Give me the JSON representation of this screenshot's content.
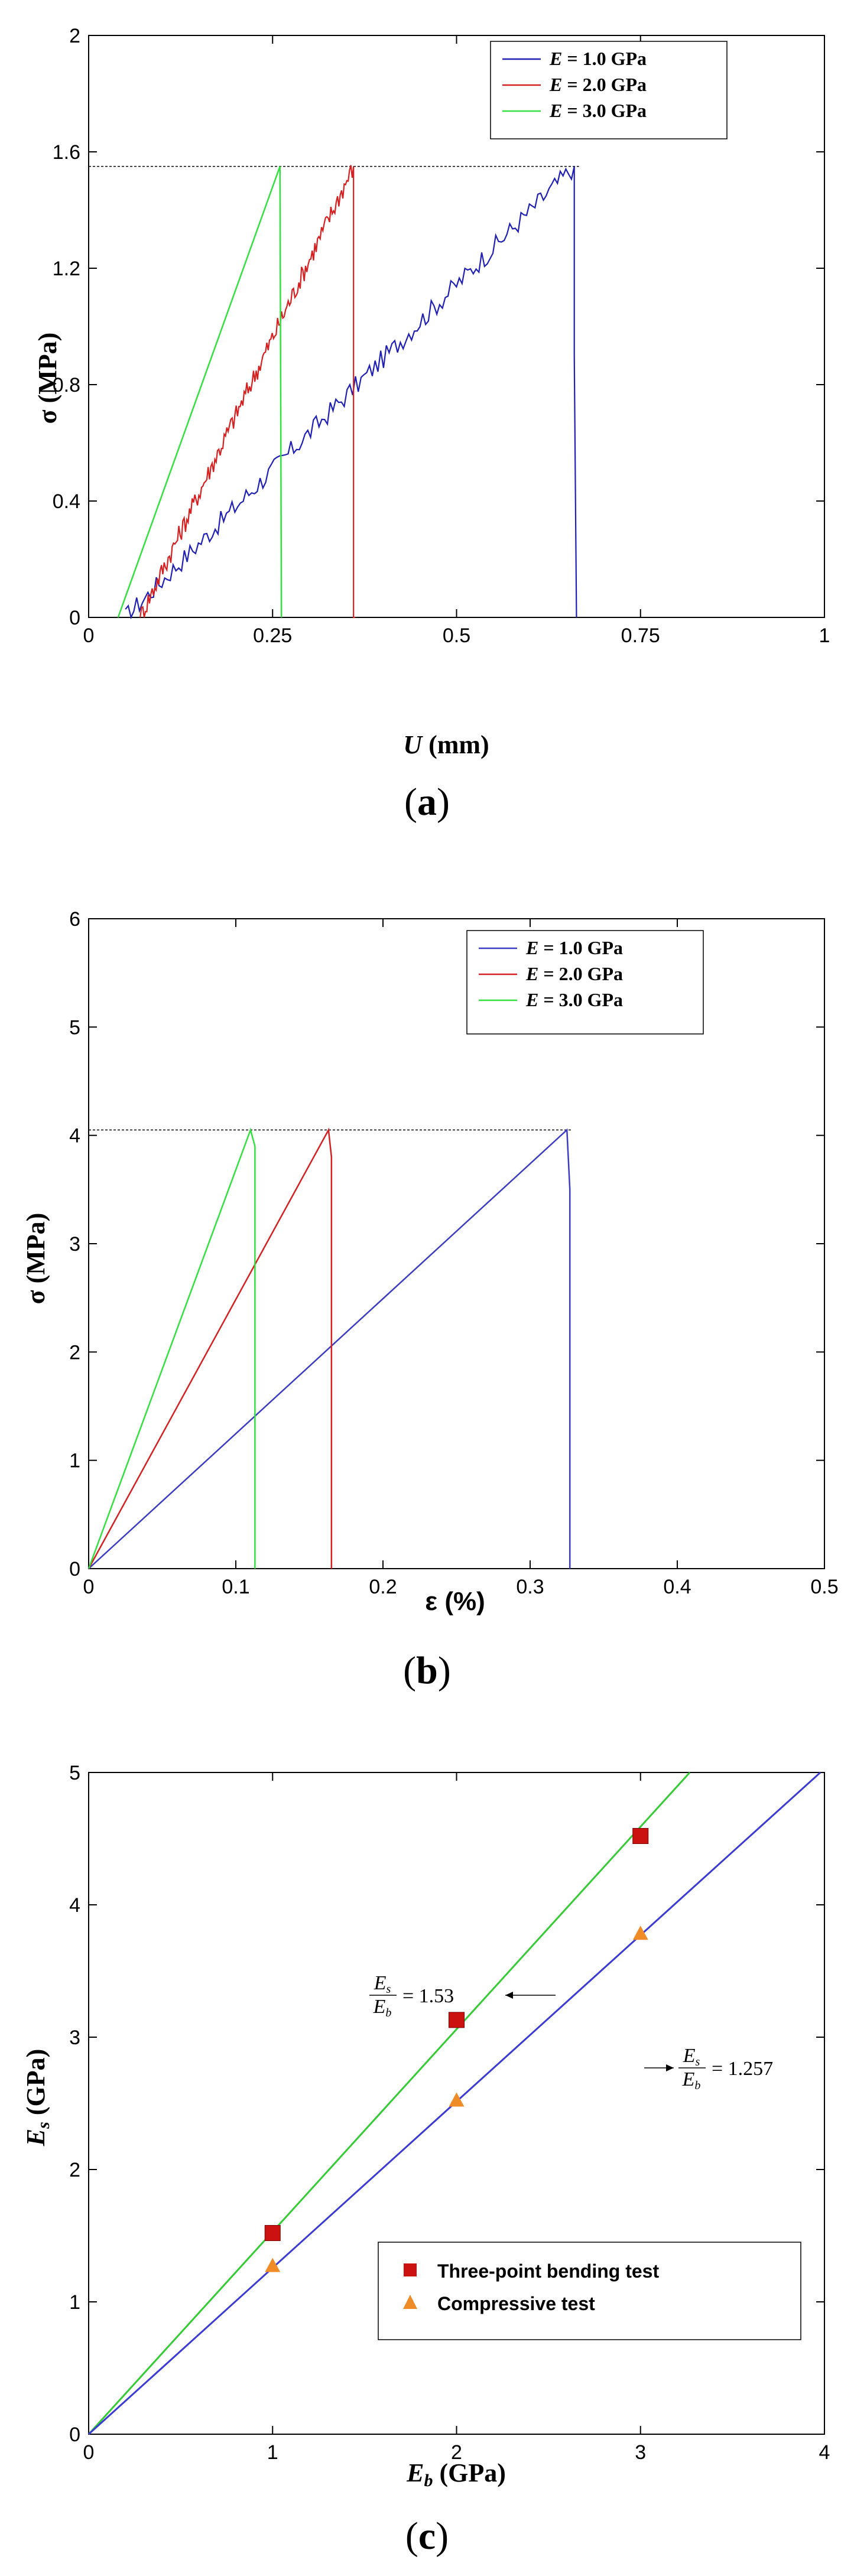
{
  "captions": [
    "(a)",
    "(b)",
    "(c)"
  ],
  "chart_data": [
    {
      "type": "line",
      "xlabel": "U (mm)",
      "ylabel": "σ (MPa)",
      "xlim": [
        0,
        1
      ],
      "ylim": [
        0,
        2
      ],
      "xticks": [
        "0",
        "0.25",
        "0.5",
        "0.75",
        "1"
      ],
      "yticks": [
        "0",
        "0.4",
        "0.8",
        "1.2",
        "1.6",
        "2"
      ],
      "legend_position": "top-right",
      "reference_line_y": 1.55,
      "series": [
        {
          "name": "E = 1.0 GPa",
          "color": "#1f1fb4",
          "x": [
            0.05,
            0.66,
            0.66,
            0.663
          ],
          "y": [
            0.0,
            1.55,
            0.9,
            0.0
          ],
          "noisy": true
        },
        {
          "name": "E = 2.0 GPa",
          "color": "#d42020",
          "x": [
            0.07,
            0.36,
            0.36,
            0.362
          ],
          "y": [
            0.0,
            1.55,
            0.0,
            0.0
          ],
          "noisy": true
        },
        {
          "name": "E = 3.0 GPa",
          "color": "#33e040",
          "x": [
            0.04,
            0.26,
            0.262,
            0.262
          ],
          "y": [
            0.0,
            1.55,
            0.0,
            0.0
          ],
          "noisy": false
        }
      ]
    },
    {
      "type": "line",
      "xlabel": "ε (%)",
      "ylabel": "σ (MPa)",
      "xlim": [
        0,
        0.5
      ],
      "ylim": [
        0,
        6
      ],
      "xticks": [
        "0",
        "0.1",
        "0.2",
        "0.3",
        "0.4",
        "0.5"
      ],
      "yticks": [
        "0",
        "1",
        "2",
        "3",
        "4",
        "5",
        "6"
      ],
      "legend_position": "top-right",
      "reference_line_y": 4.05,
      "series": [
        {
          "name": "E = 1.0 GPa",
          "color": "#3b3bc4",
          "x": [
            0.0,
            0.325,
            0.327,
            0.327
          ],
          "y": [
            0.0,
            4.05,
            3.5,
            0.0
          ]
        },
        {
          "name": "E = 2.0 GPa",
          "color": "#d42020",
          "x": [
            0.0,
            0.163,
            0.165,
            0.165
          ],
          "y": [
            0.0,
            4.05,
            3.8,
            0.0
          ]
        },
        {
          "name": "E = 3.0 GPa",
          "color": "#33e040",
          "x": [
            0.0,
            0.11,
            0.113,
            0.113
          ],
          "y": [
            0.0,
            4.05,
            3.9,
            0.0
          ]
        }
      ]
    },
    {
      "type": "scatter",
      "xlabel": "Eb (GPa)",
      "ylabel": "Es (GPa)",
      "xlim": [
        0,
        4
      ],
      "ylim": [
        0,
        5
      ],
      "xticks": [
        "0",
        "1",
        "2",
        "3",
        "4"
      ],
      "yticks": [
        "0",
        "1",
        "2",
        "3",
        "4",
        "5"
      ],
      "legend_position": "bottom-right",
      "series": [
        {
          "name": "Three-point bending test",
          "marker": "square",
          "color": "#cc1111",
          "x": [
            1,
            2,
            3
          ],
          "y": [
            1.52,
            3.13,
            4.52
          ]
        },
        {
          "name": "Compressive test",
          "marker": "triangle",
          "color": "#f08c28",
          "x": [
            1,
            2,
            3
          ],
          "y": [
            1.27,
            2.52,
            3.78
          ]
        }
      ],
      "fit_lines": [
        {
          "slope": 1.53,
          "color": "#33cc33",
          "annotation": "= 1.53",
          "annotation_pos": "upper-left"
        },
        {
          "slope": 1.257,
          "color": "#3b3bd4",
          "annotation": "= 1.257",
          "annotation_pos": "right"
        }
      ]
    }
  ]
}
